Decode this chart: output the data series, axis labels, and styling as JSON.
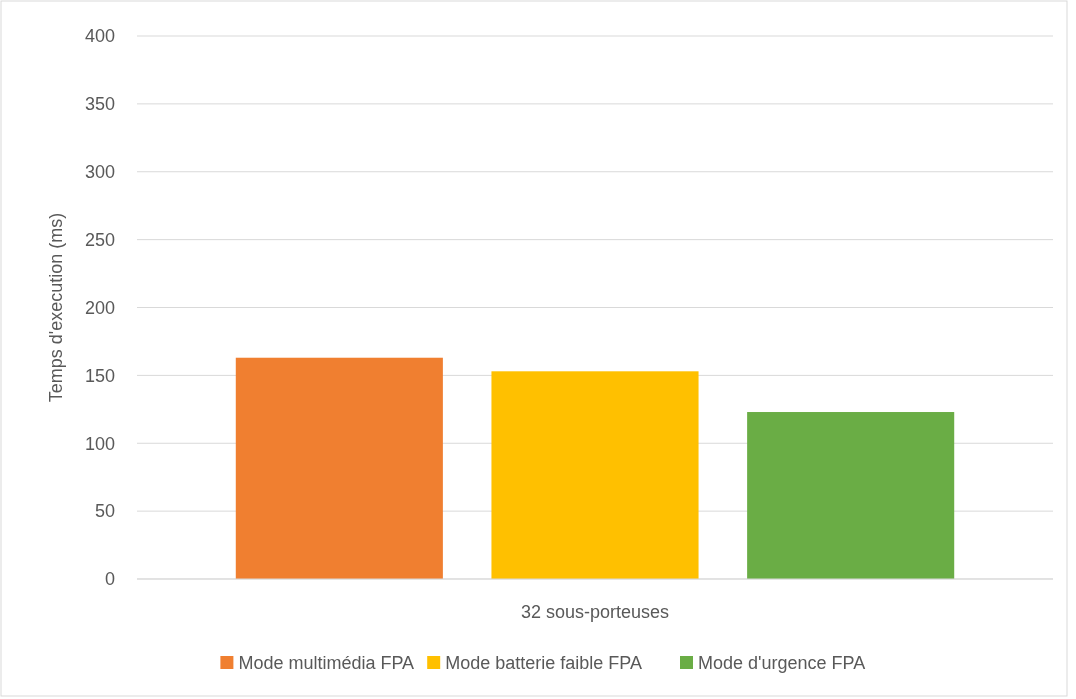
{
  "chart_data": {
    "type": "bar",
    "ylabel": "Temps d'execution (ms)",
    "categories": [
      "32 sous-porteuses"
    ],
    "series": [
      {
        "name": "Mode multimédia FPA",
        "color": "#f07f30",
        "values": [
          163
        ]
      },
      {
        "name": "Mode batterie faible FPA",
        "color": "#ffc000",
        "values": [
          153
        ]
      },
      {
        "name": "Mode d'urgence FPA",
        "color": "#6aad45",
        "values": [
          123
        ]
      }
    ],
    "ylim": [
      0,
      400
    ],
    "yticks": [
      0,
      50,
      100,
      150,
      200,
      250,
      300,
      350,
      400
    ],
    "grid": "y",
    "legend": "bottom"
  }
}
